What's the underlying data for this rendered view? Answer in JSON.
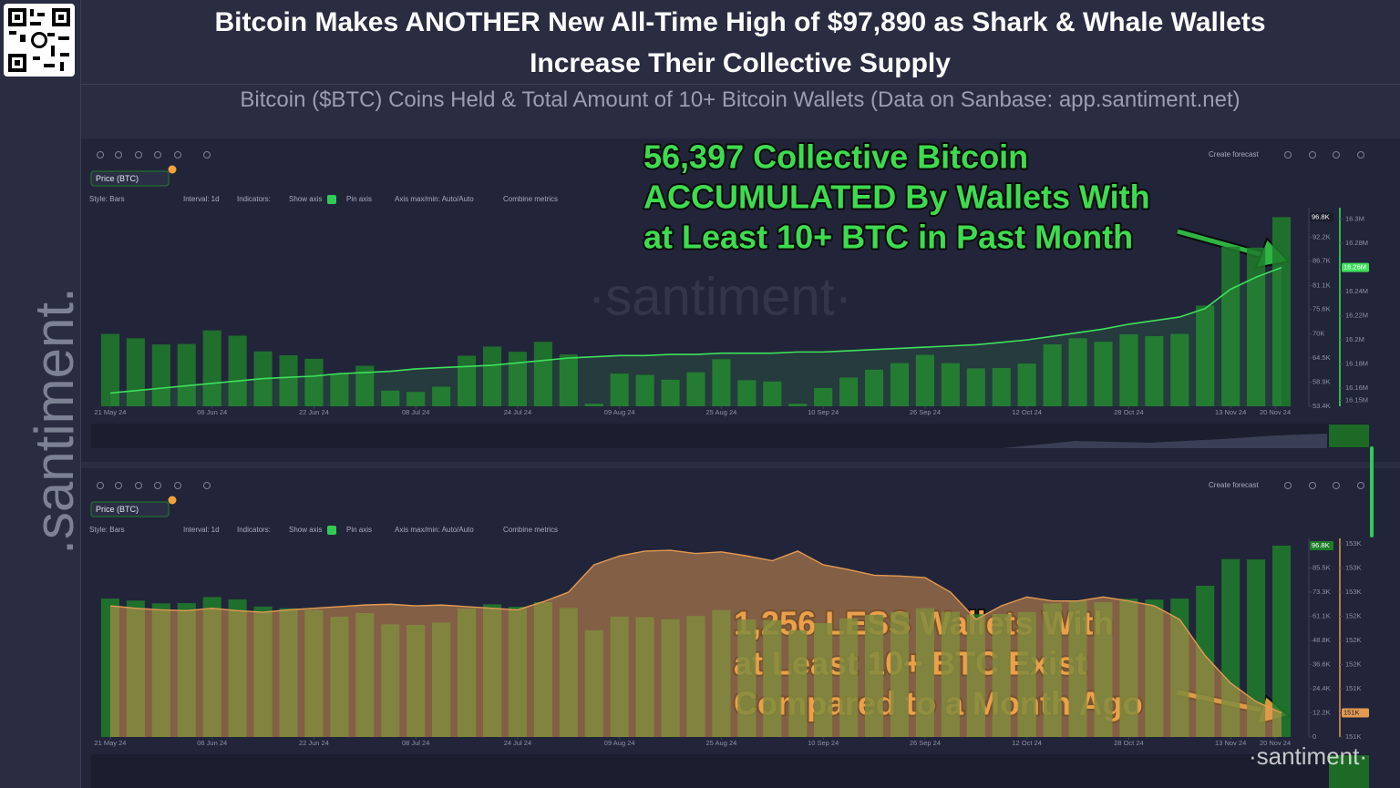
{
  "title": "Bitcoin Makes ANOTHER New All-Time High of $97,890 as Shark & Whale Wallets Increase Their Collective Supply",
  "subtitle": "Bitcoin ($BTC) Coins Held & Total Amount of 10+ Bitcoin Wallets (Data on Sanbase: app.santiment.net)",
  "watermark": ".santiment.",
  "chart_data": [
    {
      "type": "combo",
      "watermark": "·santiment·",
      "annotation_lines": [
        "56,397 Collective Bitcoin",
        "ACCUMULATED By Wallets With",
        "at Least 10+ BTC in Past Month"
      ],
      "toolbar": {
        "create_forecast": "Create forecast",
        "style": "Style: Bars",
        "interval": "Interval: 1d",
        "indicators": "Indicators:",
        "show_axis": "Show axis",
        "pin_axis": "Pin axis",
        "axis_minmax": "Axis max/min: Auto/Auto",
        "combine": "Combine metrics"
      },
      "x": [
        "2024-05-21",
        "2024-05-25",
        "2024-05-29",
        "2024-06-02",
        "2024-06-06",
        "2024-06-10",
        "2024-06-14",
        "2024-06-18",
        "2024-06-22",
        "2024-06-26",
        "2024-06-30",
        "2024-07-04",
        "2024-07-08",
        "2024-07-12",
        "2024-07-16",
        "2024-07-20",
        "2024-07-24",
        "2024-07-28",
        "2024-08-01",
        "2024-08-05",
        "2024-08-09",
        "2024-08-13",
        "2024-08-17",
        "2024-08-21",
        "2024-08-25",
        "2024-08-29",
        "2024-09-02",
        "2024-09-06",
        "2024-09-10",
        "2024-09-14",
        "2024-09-18",
        "2024-09-22",
        "2024-09-26",
        "2024-09-30",
        "2024-10-04",
        "2024-10-08",
        "2024-10-12",
        "2024-10-16",
        "2024-10-20",
        "2024-10-24",
        "2024-10-28",
        "2024-11-01",
        "2024-11-05",
        "2024-11-09",
        "2024-11-13",
        "2024-11-17",
        "2024-11-21"
      ],
      "xlim": [
        "2024-05-18",
        "2024-11-23"
      ],
      "xticks": [
        {
          "value": "2024-05-21",
          "label": "21 May 24"
        },
        {
          "value": "2024-06-06",
          "label": "06 Jun 24"
        },
        {
          "value": "2024-06-22",
          "label": "22 Jun 24"
        },
        {
          "value": "2024-07-08",
          "label": "08 Jul 24"
        },
        {
          "value": "2024-07-24",
          "label": "24 Jul 24"
        },
        {
          "value": "2024-08-09",
          "label": "09 Aug 24"
        },
        {
          "value": "2024-08-25",
          "label": "25 Aug 24"
        },
        {
          "value": "2024-09-10",
          "label": "10 Sep 24"
        },
        {
          "value": "2024-09-26",
          "label": "26 Sep 24"
        },
        {
          "value": "2024-10-12",
          "label": "12 Oct 24"
        },
        {
          "value": "2024-10-28",
          "label": "28 Oct 24"
        },
        {
          "value": "2024-11-13",
          "label": "13 Nov 24"
        },
        {
          "value": "2024-11-20",
          "label": "20 Nov 24"
        }
      ],
      "ylim": [
        53400,
        97700
      ],
      "yticks": [
        {
          "value": 53400,
          "label": "53.4K"
        },
        {
          "value": 58900,
          "label": "58.9K"
        },
        {
          "value": 64500,
          "label": "64.5K"
        },
        {
          "value": 70000,
          "label": "70K"
        },
        {
          "value": 75600,
          "label": "75.6K"
        },
        {
          "value": 81100,
          "label": "81.1K"
        },
        {
          "value": 86700,
          "label": "86.7K"
        },
        {
          "value": 92200,
          "label": "92.2K"
        }
      ],
      "y2lim": [
        16145000,
        16305000
      ],
      "y2ticks": [
        {
          "value": 16150000,
          "label": "16.15M"
        },
        {
          "value": 16160000,
          "label": "16.16M"
        },
        {
          "value": 16180000,
          "label": "16.18M"
        },
        {
          "value": 16200000,
          "label": "16.2M"
        },
        {
          "value": 16220000,
          "label": "16.22M"
        },
        {
          "value": 16240000,
          "label": "16.24M"
        },
        {
          "value": 16260000,
          "label": "16.26M"
        },
        {
          "value": 16280000,
          "label": "16.28M"
        },
        {
          "value": 16300000,
          "label": "16.3M"
        }
      ],
      "series": [
        {
          "name": "Price (BTC)",
          "type": "bar",
          "color": "#1f7d2b",
          "values": [
            70000,
            69000,
            67600,
            67700,
            70800,
            69600,
            66000,
            65100,
            64300,
            60800,
            62700,
            57000,
            56700,
            57900,
            65000,
            67100,
            65900,
            68200,
            65300,
            54000,
            60900,
            60600,
            59500,
            61200,
            64200,
            59400,
            59100,
            54000,
            57600,
            60000,
            61800,
            63300,
            65200,
            63300,
            62100,
            62200,
            63200,
            67600,
            69000,
            68200,
            69900,
            69500,
            70000,
            76500,
            90000,
            89800,
            96800
          ],
          "value_labels": [
            null,
            null,
            null,
            null,
            null,
            null,
            null,
            null,
            null,
            null,
            null,
            null,
            null,
            null,
            null,
            null,
            null,
            null,
            null,
            null,
            null,
            null,
            null,
            null,
            null,
            null,
            null,
            null,
            null,
            null,
            null,
            null,
            null,
            null,
            null,
            null,
            null,
            null,
            null,
            null,
            null,
            null,
            null,
            null,
            null,
            null,
            "96.8K"
          ]
        },
        {
          "type": "line",
          "axis": "y2",
          "color": "#3fe05c",
          "values": [
            16156000,
            16158000,
            16160000,
            16162000,
            16164000,
            16166000,
            16168000,
            16169000,
            16170000,
            16172000,
            16173000,
            16174000,
            16176000,
            16177000,
            16178000,
            16179000,
            16181000,
            16183000,
            16185000,
            16186000,
            16187000,
            16187000,
            16188000,
            16188000,
            16189000,
            16189000,
            16189000,
            16190000,
            16190000,
            16191000,
            16192000,
            16193000,
            16194000,
            16195000,
            16196000,
            16198000,
            16200000,
            16203000,
            16206000,
            16209000,
            16213000,
            16216000,
            16219000,
            16226000,
            16242000,
            16252000,
            16260000
          ],
          "value_labels": [
            null,
            null,
            null,
            null,
            null,
            null,
            null,
            null,
            null,
            null,
            null,
            null,
            null,
            null,
            null,
            null,
            null,
            null,
            null,
            null,
            null,
            null,
            null,
            null,
            null,
            null,
            null,
            null,
            null,
            null,
            null,
            null,
            null,
            null,
            null,
            null,
            null,
            null,
            null,
            null,
            null,
            null,
            null,
            null,
            null,
            null,
            "16.26M"
          ]
        }
      ]
    },
    {
      "type": "combo",
      "watermark": "·santiment·",
      "annotation_lines": [
        "1,256 LESS Wallets With",
        "at Least 10+ BTC Exist",
        "Compared to a Month Ago"
      ],
      "toolbar": {
        "create_forecast": "Create forecast",
        "style": "Style: Bars",
        "interval": "Interval: 1d",
        "indicators": "Indicators:",
        "show_axis": "Show axis",
        "pin_axis": "Pin axis",
        "axis_minmax": "Axis max/min: Auto/Auto",
        "combine": "Combine metrics"
      },
      "x": [
        "2024-05-21",
        "2024-05-25",
        "2024-05-29",
        "2024-06-02",
        "2024-06-06",
        "2024-06-10",
        "2024-06-14",
        "2024-06-18",
        "2024-06-22",
        "2024-06-26",
        "2024-06-30",
        "2024-07-04",
        "2024-07-08",
        "2024-07-12",
        "2024-07-16",
        "2024-07-20",
        "2024-07-24",
        "2024-07-28",
        "2024-08-01",
        "2024-08-05",
        "2024-08-09",
        "2024-08-13",
        "2024-08-17",
        "2024-08-21",
        "2024-08-25",
        "2024-08-29",
        "2024-09-02",
        "2024-09-06",
        "2024-09-10",
        "2024-09-14",
        "2024-09-18",
        "2024-09-22",
        "2024-09-26",
        "2024-09-30",
        "2024-10-04",
        "2024-10-08",
        "2024-10-12",
        "2024-10-16",
        "2024-10-20",
        "2024-10-24",
        "2024-10-28",
        "2024-11-01",
        "2024-11-05",
        "2024-11-09",
        "2024-11-13",
        "2024-11-17",
        "2024-11-21"
      ],
      "xlim": [
        "2024-05-18",
        "2024-11-23"
      ],
      "xticks": [
        {
          "value": "2024-05-21",
          "label": "21 May 24"
        },
        {
          "value": "2024-06-06",
          "label": "06 Jun 24"
        },
        {
          "value": "2024-06-22",
          "label": "22 Jun 24"
        },
        {
          "value": "2024-07-08",
          "label": "08 Jul 24"
        },
        {
          "value": "2024-07-24",
          "label": "24 Jul 24"
        },
        {
          "value": "2024-08-09",
          "label": "09 Aug 24"
        },
        {
          "value": "2024-08-25",
          "label": "25 Aug 24"
        },
        {
          "value": "2024-09-10",
          "label": "10 Sep 24"
        },
        {
          "value": "2024-09-26",
          "label": "26 Sep 24"
        },
        {
          "value": "2024-10-12",
          "label": "12 Oct 24"
        },
        {
          "value": "2024-10-28",
          "label": "28 Oct 24"
        },
        {
          "value": "2024-11-13",
          "label": "13 Nov 24"
        },
        {
          "value": "2024-11-20",
          "label": "20 Nov 24"
        }
      ],
      "ylim": [
        0,
        97700
      ],
      "yticks": [
        0,
        {
          "value": 12200,
          "label": "12.2K"
        },
        {
          "value": 24400,
          "label": "24.4K"
        },
        {
          "value": 36600,
          "label": "36.6K"
        },
        {
          "value": 48800,
          "label": "48.8K"
        },
        {
          "value": 61100,
          "label": "61.1K"
        },
        {
          "value": 73300,
          "label": "73.3K"
        },
        {
          "value": 85500,
          "label": "85.5K"
        }
      ],
      "y2lim": [
        150800,
        153200
      ],
      "y2ticks": [
        {
          "value": 150800,
          "label": "151K"
        },
        {
          "value": 151100,
          "label": "151K"
        },
        {
          "value": 151400,
          "label": "151K"
        },
        {
          "value": 151700,
          "label": "152K"
        },
        {
          "value": 152000,
          "label": "152K"
        },
        {
          "value": 152300,
          "label": "152K"
        },
        {
          "value": 152600,
          "label": "153K"
        },
        {
          "value": 152900,
          "label": "153K"
        },
        {
          "value": 153200,
          "label": "153K"
        }
      ],
      "series": [
        {
          "name": "Price (BTC)",
          "type": "bar",
          "color": "#1f7d2b",
          "values": [
            70000,
            69000,
            67600,
            67700,
            70800,
            69600,
            66000,
            65100,
            64300,
            60800,
            62700,
            57000,
            56700,
            57900,
            65000,
            67100,
            65900,
            68200,
            65300,
            54000,
            60900,
            60600,
            59500,
            61200,
            64200,
            59400,
            59100,
            54000,
            57600,
            60000,
            61800,
            63300,
            65200,
            63300,
            62100,
            62200,
            63200,
            67600,
            69000,
            68200,
            69900,
            69500,
            70000,
            76500,
            90000,
            89800,
            96800
          ],
          "value_labels": [
            null,
            null,
            null,
            null,
            null,
            null,
            null,
            null,
            null,
            null,
            null,
            null,
            null,
            null,
            null,
            null,
            null,
            null,
            null,
            null,
            null,
            null,
            null,
            null,
            null,
            null,
            null,
            null,
            null,
            null,
            null,
            null,
            null,
            null,
            null,
            null,
            null,
            null,
            null,
            null,
            null,
            null,
            null,
            null,
            null,
            null,
            "96.8K"
          ]
        },
        {
          "type": "area",
          "axis": "y2",
          "color": "#e39a52",
          "values": [
            152430,
            152400,
            152380,
            152370,
            152400,
            152370,
            152350,
            152380,
            152400,
            152420,
            152440,
            152450,
            152430,
            152440,
            152420,
            152400,
            152380,
            152480,
            152600,
            152940,
            153050,
            153110,
            153120,
            153080,
            153100,
            153050,
            152990,
            153110,
            152940,
            152880,
            152810,
            152800,
            152780,
            152600,
            152260,
            152430,
            152540,
            152490,
            152490,
            152540,
            152490,
            152430,
            152260,
            151810,
            151470,
            151240,
            151100
          ],
          "value_labels": [
            null,
            null,
            null,
            null,
            null,
            null,
            null,
            null,
            null,
            null,
            null,
            null,
            null,
            null,
            null,
            null,
            null,
            null,
            null,
            null,
            null,
            null,
            null,
            null,
            null,
            null,
            null,
            null,
            null,
            null,
            null,
            null,
            null,
            null,
            null,
            null,
            null,
            null,
            null,
            null,
            null,
            null,
            null,
            null,
            null,
            null,
            "151K"
          ]
        }
      ]
    }
  ]
}
